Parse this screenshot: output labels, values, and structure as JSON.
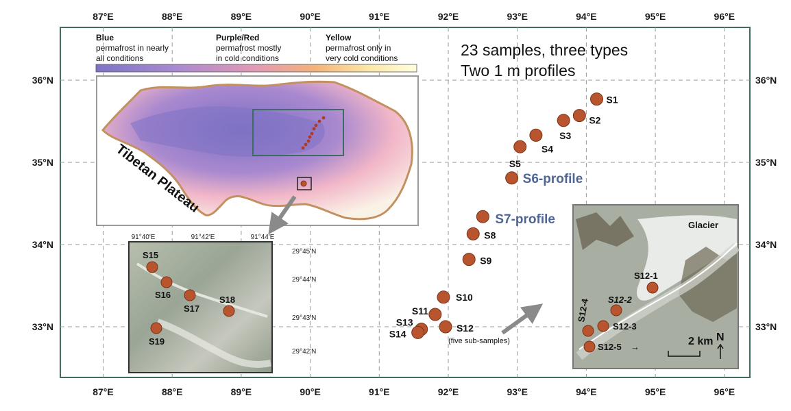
{
  "lon_ticks": [
    "87°E",
    "88°E",
    "89°E",
    "90°E",
    "91°E",
    "92°E",
    "93°E",
    "94°E",
    "95°E",
    "96°E"
  ],
  "lat_ticks": [
    "36°N",
    "35°N",
    "34°N",
    "33°N"
  ],
  "legend": {
    "blue_title": "Blue",
    "blue_line1": "permafrost in nearly",
    "blue_line2": "all conditions",
    "purple_title": "Purple/Red",
    "purple_line1": "permafrost mostly",
    "purple_line2": "in cold conditions",
    "yellow_title": "Yellow",
    "yellow_line1": "permafrost only in",
    "yellow_line2": "very cold conditions",
    "gradient": [
      "#7d73c7",
      "#a98ad0",
      "#e39ab5",
      "#f4b27a",
      "#fbe8a6",
      "#fffde0"
    ]
  },
  "note": {
    "line1": "23 samples, three types",
    "line2": "Two 1 m profiles"
  },
  "plateau_label": "Tibetan Plateau",
  "samples": [
    {
      "label": "S1",
      "lon": 94.15,
      "lat": 35.77
    },
    {
      "label": "S2",
      "lon": 93.9,
      "lat": 35.57
    },
    {
      "label": "S3",
      "lon": 93.67,
      "lat": 35.51
    },
    {
      "label": "S4",
      "lon": 93.27,
      "lat": 35.33
    },
    {
      "label": "S5",
      "lon": 93.04,
      "lat": 35.19
    },
    {
      "label": "S6-profile",
      "lon": 92.92,
      "lat": 34.81
    },
    {
      "label": "S7-profile",
      "lon": 92.5,
      "lat": 34.34
    },
    {
      "label": "S8",
      "lon": 92.36,
      "lat": 34.13
    },
    {
      "label": "S9",
      "lon": 92.3,
      "lat": 33.82
    },
    {
      "label": "S10",
      "lon": 91.93,
      "lat": 33.36
    },
    {
      "label": "S11",
      "lon": 91.81,
      "lat": 33.15
    },
    {
      "label": "S12",
      "lon": 91.96,
      "lat": 33.0
    },
    {
      "label": "S13",
      "lon": 91.61,
      "lat": 32.97
    },
    {
      "label": "S14",
      "lon": 91.56,
      "lat": 32.93
    }
  ],
  "s12_note": "(five sub-samples)",
  "inset_sat": {
    "lon_ticks": [
      "91°40'E",
      "91°42'E",
      "91°44'E"
    ],
    "lat_ticks": [
      "29°45'N",
      "29°44'N",
      "29°43'N",
      "29°42'N"
    ],
    "samples": [
      "S15",
      "S16",
      "S17",
      "S18",
      "S19"
    ]
  },
  "inset_glacier": {
    "glacier_label": "Glacier",
    "samples": [
      "S12-1",
      "S12-2",
      "S12-3",
      "S12-4",
      "S12-5"
    ],
    "scale_label": "2 km",
    "north_label": "N"
  },
  "colors": {
    "frame": "#3e6b63",
    "sample": "#b9552e",
    "profile": "#4f6593",
    "grid": "#9a9a9a",
    "outline": "#c39060"
  }
}
